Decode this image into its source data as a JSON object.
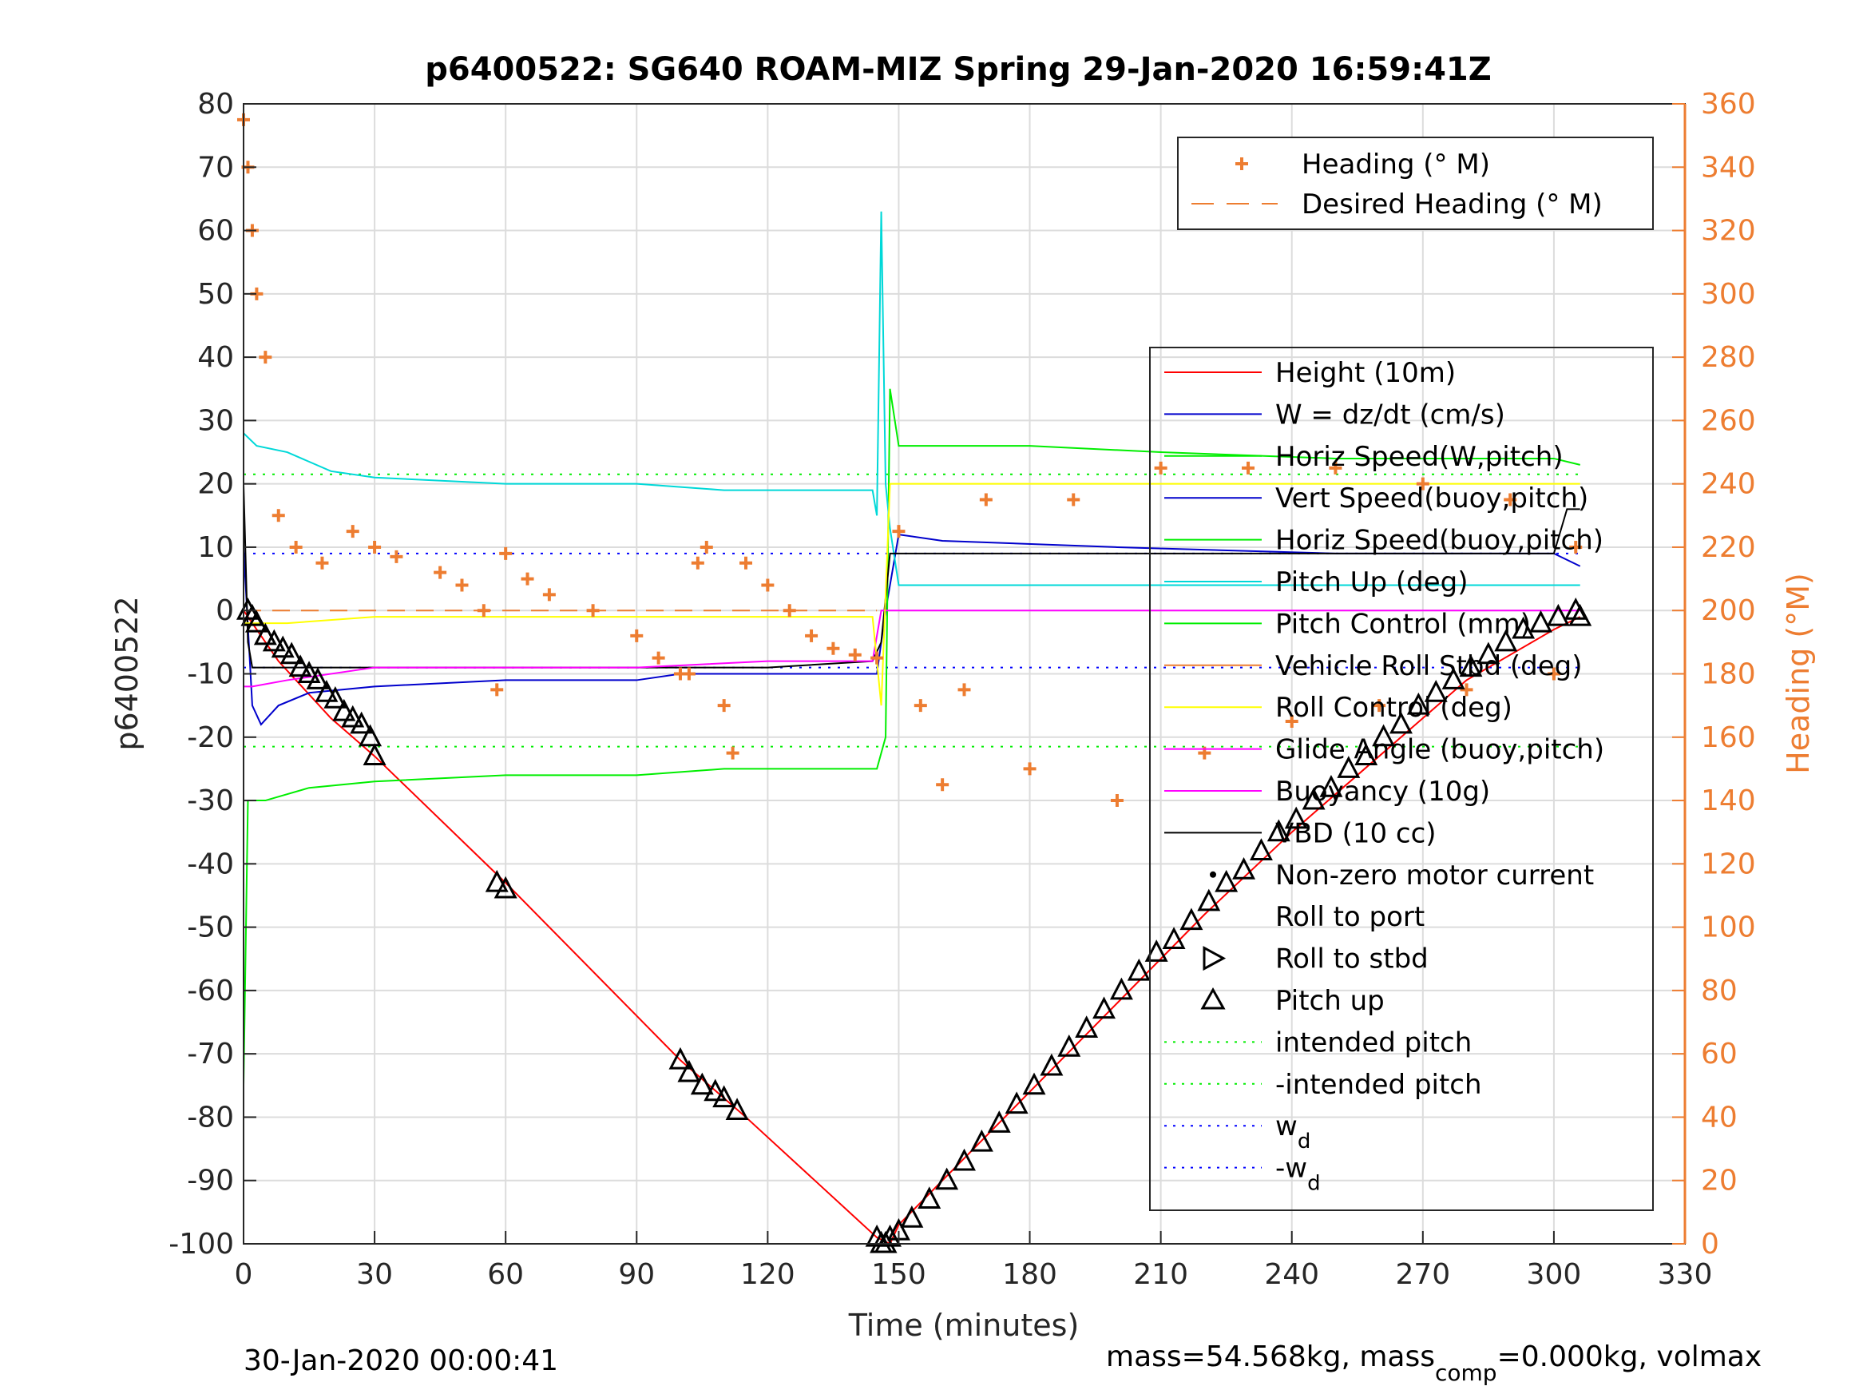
{
  "chart_data": {
    "type": "line",
    "title": "p6400522: SG640 ROAM-MIZ Spring 29-Jan-2020 16:59:41Z",
    "xlabel": "Time (minutes)",
    "ylabel": "p6400522",
    "y2label": "Heading (°M)",
    "xlim": [
      0,
      330
    ],
    "ylim": [
      -100,
      80
    ],
    "y2lim": [
      0,
      360
    ],
    "xticks": [
      "0",
      "30",
      "60",
      "90",
      "120",
      "150",
      "180",
      "210",
      "240",
      "270",
      "300",
      "330"
    ],
    "yticks": [
      "80",
      "70",
      "60",
      "50",
      "40",
      "30",
      "20",
      "10",
      "0",
      "-10",
      "-20",
      "-30",
      "-40",
      "-50",
      "-60",
      "-70",
      "-80",
      "-90",
      "-100"
    ],
    "y2ticks": [
      "360",
      "340",
      "320",
      "300",
      "280",
      "260",
      "240",
      "220",
      "200",
      "180",
      "160",
      "140",
      "120",
      "100",
      "80",
      "60",
      "40",
      "20",
      "0"
    ],
    "grid": true,
    "footer_left": "30-Jan-2020 00:00:41",
    "footer_right": "mass=54.568kg, mass",
    "footer_right_sub": "comp",
    "footer_right_tail": "=0.000kg, volmax",
    "colors": {
      "heading": "#ed7d31",
      "height": "#ff0000",
      "w": "#0000cc",
      "horiz_speed": "#00ee00",
      "vert_speed": "#00d8d8",
      "pitch": "#ffff00",
      "buoyancy": "#ff00ff",
      "vbd": "#000000",
      "intended": "#00ee00",
      "wd": "#0000ff"
    },
    "legend_top": {
      "position": "top-right",
      "entries": [
        {
          "label": "Heading (° M)",
          "marker": "plus",
          "color": "#ed7d31"
        },
        {
          "label": "Desired Heading (° M)",
          "marker": "dash",
          "color": "#ed7d31"
        }
      ]
    },
    "legend_main": {
      "position": "right",
      "entries": [
        {
          "label": "Height (10m)",
          "style": "solid",
          "color": "#ff0000"
        },
        {
          "label": "W = dz/dt (cm/s)",
          "style": "solid",
          "color": "#0000cc"
        },
        {
          "label": "Horiz Speed(W,pitch)",
          "style": "solid",
          "color": "#00ee00"
        },
        {
          "label": "Vert Speed(buoy,pitch)",
          "style": "solid",
          "color": "#0000cc"
        },
        {
          "label": "Horiz Speed(buoy,pitch)",
          "style": "solid",
          "color": "#00ee00"
        },
        {
          "label": "Pitch Up (deg)",
          "style": "solid",
          "color": "#00d8d8"
        },
        {
          "label": "Pitch Control (mm)",
          "style": "solid",
          "color": "#00ee00"
        },
        {
          "label": "Vehicle Roll Stbd (deg)",
          "style": "solid",
          "color": "#ed7d31"
        },
        {
          "label": "Roll Control (deg)",
          "style": "solid",
          "color": "#ffff00"
        },
        {
          "label": "Glide Angle (buoy,pitch)",
          "style": "solid",
          "color": "#ff00ff"
        },
        {
          "label": "Buoyancy (10g)",
          "style": "solid",
          "color": "#ff00ff"
        },
        {
          "label": "VBD (10 cc)",
          "style": "solid",
          "color": "#000000"
        },
        {
          "label": "Non-zero motor current",
          "style": "dot",
          "color": "#000000"
        },
        {
          "label": "Roll to port",
          "style": "none",
          "color": "#000000"
        },
        {
          "label": "Roll to stbd",
          "style": "tri-right",
          "color": "#000000"
        },
        {
          "label": "Pitch up",
          "style": "tri-up",
          "color": "#000000"
        },
        {
          "label": "intended pitch",
          "style": "dotted",
          "color": "#00ee00"
        },
        {
          "label": "-intended pitch",
          "style": "dotted",
          "color": "#00ee00"
        },
        {
          "label": "w",
          "sub": "d",
          "style": "dotted",
          "color": "#0000ff"
        },
        {
          "label": "-w",
          "sub": "d",
          "style": "dotted",
          "color": "#0000ff"
        }
      ]
    },
    "series": [
      {
        "name": "Height (10m)",
        "axis": "left",
        "color": "#ff0000",
        "x": [
          0,
          2,
          5,
          8,
          12,
          16,
          20,
          25,
          30,
          60,
          100,
          105,
          110,
          115,
          145,
          148,
          150,
          160,
          180,
          200,
          220,
          240,
          260,
          280,
          300,
          306
        ],
        "y": [
          0,
          -2,
          -5,
          -8,
          -11,
          -14,
          -17,
          -20,
          -23,
          -43,
          -71,
          -74,
          -77,
          -80,
          -99,
          -100,
          -97,
          -90,
          -76,
          -62,
          -48,
          -35,
          -23,
          -11,
          -3,
          -1
        ]
      },
      {
        "name": "W = dz/dt (cm/s)",
        "axis": "left",
        "color": "#0000cc",
        "x": [
          0,
          2,
          4,
          8,
          15,
          30,
          60,
          90,
          100,
          110,
          120,
          145,
          147,
          150,
          160,
          200,
          250,
          300,
          306
        ],
        "y": [
          10,
          -15,
          -18,
          -15,
          -13,
          -12,
          -11,
          -11,
          -10,
          -10,
          -10,
          -10,
          0,
          12,
          11,
          10,
          9,
          9,
          7
        ]
      },
      {
        "name": "Horiz Speed(W,pitch)",
        "axis": "left",
        "color": "#00ee00",
        "x": [
          0,
          1,
          2,
          5,
          15,
          30,
          60,
          90,
          110,
          120,
          145,
          147,
          148,
          150,
          180,
          210,
          250,
          300,
          306
        ],
        "y": [
          -75,
          -30,
          -30,
          -30,
          -28,
          -27,
          -26,
          -26,
          -25,
          -25,
          -25,
          -20,
          35,
          26,
          26,
          25,
          24,
          24,
          23
        ]
      },
      {
        "name": "Vert Speed(buoy,pitch)",
        "axis": "left",
        "color": "#00d8d8",
        "x": [
          0,
          3,
          10,
          20,
          30,
          60,
          90,
          110,
          120,
          144,
          145,
          146,
          147,
          148,
          150,
          306
        ],
        "y": [
          28,
          26,
          25,
          22,
          21,
          20,
          20,
          19,
          19,
          19,
          15,
          63,
          20,
          13,
          4,
          4
        ]
      },
      {
        "name": "VBD (10 cc)",
        "axis": "left",
        "color": "#000000",
        "x": [
          0,
          1,
          2,
          10,
          30,
          60,
          90,
          120,
          144,
          146,
          148,
          150,
          200,
          250,
          300,
          303,
          306
        ],
        "y": [
          20,
          -5,
          -9,
          -9,
          -9,
          -9,
          -9,
          -9,
          -8,
          -5,
          9,
          9,
          9,
          9,
          9,
          16,
          16
        ]
      },
      {
        "name": "Buoyancy (10g)",
        "axis": "left",
        "color": "#ff00ff",
        "x": [
          0,
          2,
          10,
          30,
          60,
          90,
          120,
          144,
          146,
          148,
          306
        ],
        "y": [
          -12,
          -12,
          -11,
          -9,
          -9,
          -9,
          -8,
          -8,
          0,
          0,
          0
        ]
      },
      {
        "name": "Pitch Control (mm)",
        "axis": "left",
        "color": "#ffff00",
        "x": [
          0,
          10,
          30,
          60,
          90,
          120,
          144,
          146,
          148,
          150,
          200,
          250,
          306
        ],
        "y": [
          -2,
          -2,
          -1,
          -1,
          -1,
          -1,
          -1,
          -15,
          20,
          20,
          20,
          20,
          20
        ]
      },
      {
        "name": "Heading (° M)",
        "axis": "right",
        "marker": "plus",
        "color": "#ed7d31",
        "x": [
          0,
          1,
          2,
          3,
          5,
          8,
          12,
          18,
          25,
          30,
          35,
          45,
          50,
          55,
          58,
          60,
          65,
          70,
          80,
          90,
          95,
          100,
          102,
          104,
          106,
          110,
          112,
          115,
          120,
          125,
          130,
          135,
          140,
          145,
          150,
          155,
          160,
          165,
          170,
          180,
          190,
          200,
          210,
          220,
          230,
          240,
          250,
          260,
          270,
          280,
          290,
          300,
          305
        ],
        "y": [
          355,
          340,
          320,
          300,
          280,
          230,
          220,
          215,
          225,
          220,
          217,
          212,
          208,
          200,
          175,
          218,
          210,
          205,
          200,
          192,
          185,
          180,
          180,
          215,
          220,
          170,
          155,
          215,
          208,
          200,
          192,
          188,
          186,
          185,
          225,
          170,
          145,
          175,
          235,
          150,
          235,
          140,
          245,
          155,
          245,
          165,
          245,
          170,
          240,
          175,
          235,
          180,
          220
        ]
      }
    ],
    "markers": {
      "pitch_up_x": [
        1,
        2,
        3,
        5,
        7,
        9,
        11,
        13,
        15,
        17,
        19,
        21,
        23,
        25,
        27,
        29,
        30,
        58,
        60,
        100,
        102,
        105,
        108,
        110,
        113,
        145,
        146,
        147,
        148,
        150,
        153,
        157,
        161,
        165,
        169,
        173,
        177,
        181,
        185,
        189,
        193,
        197,
        201,
        205,
        209,
        213,
        217,
        221,
        225,
        229,
        233,
        237,
        241,
        245,
        249,
        253,
        257,
        261,
        265,
        269,
        273,
        277,
        281,
        285,
        289,
        293,
        297,
        301,
        305,
        306
      ],
      "pitch_up_y": [
        0,
        -1,
        -2,
        -4,
        -5,
        -6,
        -7,
        -9,
        -10,
        -11,
        -13,
        -14,
        -16,
        -17,
        -18,
        -20,
        -23,
        -43,
        -44,
        -71,
        -73,
        -75,
        -76,
        -77,
        -79,
        -99,
        -100,
        -100,
        -99,
        -98,
        -96,
        -93,
        -90,
        -87,
        -84,
        -81,
        -78,
        -75,
        -72,
        -69,
        -66,
        -63,
        -60,
        -57,
        -54,
        -52,
        -49,
        -46,
        -43,
        -41,
        -38,
        -35,
        -33,
        -30,
        -28,
        -25,
        -23,
        -20,
        -18,
        -15,
        -13,
        -11,
        -9,
        -7,
        -5,
        -3,
        -2,
        -1,
        0,
        -1
      ]
    },
    "reference_lines": [
      {
        "name": "intended pitch",
        "y": 21.5,
        "color": "#00ee00",
        "x": [
          0,
          306
        ]
      },
      {
        "name": "-intended pitch",
        "y": -21.5,
        "color": "#00ee00",
        "x": [
          0,
          306
        ]
      },
      {
        "name": "w_d",
        "y": 9,
        "color": "#0000ff",
        "x": [
          0,
          306
        ]
      },
      {
        "name": "-w_d",
        "y": -9,
        "color": "#0000ff",
        "x": [
          0,
          306
        ]
      },
      {
        "name": "Desired Heading (° M)",
        "axis": "right",
        "y": 200,
        "color": "#ed7d31",
        "x": [
          0,
          145
        ]
      }
    ]
  }
}
